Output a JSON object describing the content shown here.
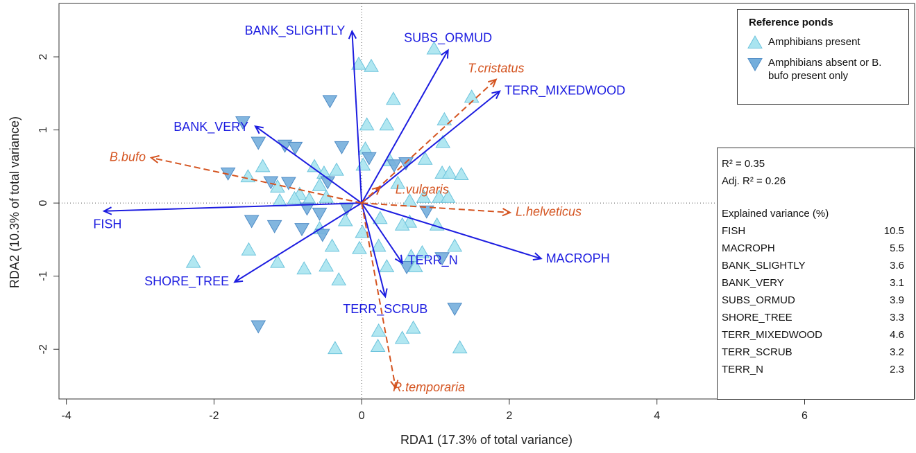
{
  "chart_data": {
    "type": "scatter",
    "x_label": "RDA1 (17.3% of total variance)",
    "y_label": "RDA2 (10.3% of total variance)",
    "xlim": [
      -4.1,
      7.49
    ],
    "ylim": [
      -2.68,
      2.73
    ],
    "xticks": [
      -4,
      -2,
      0,
      2,
      4,
      6
    ],
    "yticks": [
      -2,
      -1,
      0,
      1,
      2
    ],
    "zero_lines": true,
    "legend": {
      "title": "Reference ponds",
      "position": "top-right"
    },
    "series": [
      {
        "name": "Amphibians present",
        "marker": "triangle-up",
        "color": "#a9e4f0",
        "edge": "#6cc3dc",
        "x": [
          -0.04,
          0.13,
          0.98,
          0.43,
          1.49,
          0.07,
          0.34,
          1.12,
          1.1,
          1.09,
          1.19,
          1.35,
          0.38,
          0.86,
          0.02,
          0.05,
          -1.34,
          -0.64,
          -0.51,
          -0.34,
          -1.54,
          -1.14,
          -0.84,
          -0.57,
          -0.48,
          -1.11,
          -0.91,
          -0.71,
          0.49,
          0.65,
          0.84,
          1.05,
          1.17,
          0.65,
          1.02,
          0.55,
          0.01,
          0.25,
          -0.22,
          -0.57,
          -0.4,
          -0.03,
          -1.53,
          -1.14,
          -0.78,
          -0.48,
          -0.31,
          -2.28,
          0.34,
          0.82,
          1.26,
          0.73,
          0.23,
          0.55,
          0.7,
          -0.36,
          0.22,
          1.33,
          0.67,
          0.23
        ],
        "y": [
          1.9,
          1.87,
          2.11,
          1.42,
          1.45,
          1.07,
          1.07,
          1.14,
          0.83,
          0.41,
          0.41,
          0.39,
          0.58,
          0.6,
          0.52,
          0.74,
          0.5,
          0.5,
          0.41,
          0.45,
          0.36,
          0.22,
          0.12,
          0.24,
          0.08,
          0.03,
          0.06,
          0.05,
          0.27,
          0.03,
          0.08,
          0.08,
          0.08,
          -0.26,
          -0.3,
          -0.3,
          -0.4,
          -0.21,
          -0.24,
          -0.35,
          -0.59,
          -0.62,
          -0.64,
          -0.81,
          -0.9,
          -0.86,
          -1.05,
          -0.81,
          -0.87,
          -0.68,
          -0.59,
          -0.87,
          -1.75,
          -1.85,
          -1.71,
          -1.99,
          -1.96,
          -1.98,
          -0.73,
          -0.59
        ]
      },
      {
        "name": "Amphibians absent or B. bufo present only",
        "marker": "triangle-down",
        "color": "#74aedc",
        "edge": "#4f8cc6",
        "x": [
          -1.61,
          -0.43,
          -1.4,
          -1.04,
          -0.9,
          -0.27,
          0.1,
          0.44,
          -1.81,
          -1.23,
          -0.99,
          -0.46,
          -1.49,
          -1.18,
          -0.74,
          -0.57,
          -0.81,
          -0.53,
          -0.2,
          0.6,
          0.88,
          1.09,
          0.61,
          1.26,
          -1.4
        ],
        "y": [
          1.11,
          1.4,
          0.83,
          0.79,
          0.76,
          0.77,
          0.62,
          0.52,
          0.41,
          0.29,
          0.28,
          0.29,
          -0.24,
          -0.31,
          -0.07,
          -0.14,
          -0.35,
          -0.43,
          -0.07,
          0.55,
          -0.11,
          -0.75,
          -0.87,
          -1.44,
          -1.68
        ]
      }
    ],
    "vector_groups": [
      {
        "color": "#1c1ce0",
        "dashed": false,
        "italic": false,
        "labels": [
          "FISH",
          "BANK_SLIGHTLY",
          "SUBS_ORMUD",
          "TERR_MIXEDWOOD",
          "BANK_VERY",
          "MACROPH",
          "SHORE_TREE",
          "TERR_SCRUB",
          "TERR_N"
        ],
        "x": [
          -3.49,
          -0.13,
          1.17,
          1.87,
          -1.44,
          2.43,
          -1.72,
          0.32,
          0.55
        ],
        "y": [
          -0.11,
          2.35,
          2.09,
          1.53,
          1.05,
          -0.76,
          -1.08,
          -1.28,
          -0.82
        ]
      },
      {
        "color": "#d4531f",
        "dashed": true,
        "italic": true,
        "labels": [
          "B.bufo",
          "T.cristatus",
          "L.vulgaris",
          "L.helveticus",
          "R.temporaria"
        ],
        "x": [
          -2.85,
          1.82,
          0.25,
          2.01,
          0.46
        ],
        "y": [
          0.62,
          1.69,
          0.22,
          -0.13,
          -2.53
        ]
      }
    ],
    "stats": {
      "fit": [
        "R² = 0.35",
        "Adj. R² = 0.26"
      ],
      "table_title": "Explained variance (%)",
      "rows": [
        [
          "FISH",
          10.5
        ],
        [
          "MACROPH",
          5.5
        ],
        [
          "BANK_SLIGHTLY",
          3.6
        ],
        [
          "BANK_VERY",
          3.1
        ],
        [
          "SUBS_ORMUD",
          3.9
        ],
        [
          "SHORE_TREE",
          3.3
        ],
        [
          "TERR_MIXEDWOOD",
          4.6
        ],
        [
          "TERR_SCRUB",
          3.2
        ],
        [
          "TERR_N",
          2.3
        ]
      ]
    }
  }
}
